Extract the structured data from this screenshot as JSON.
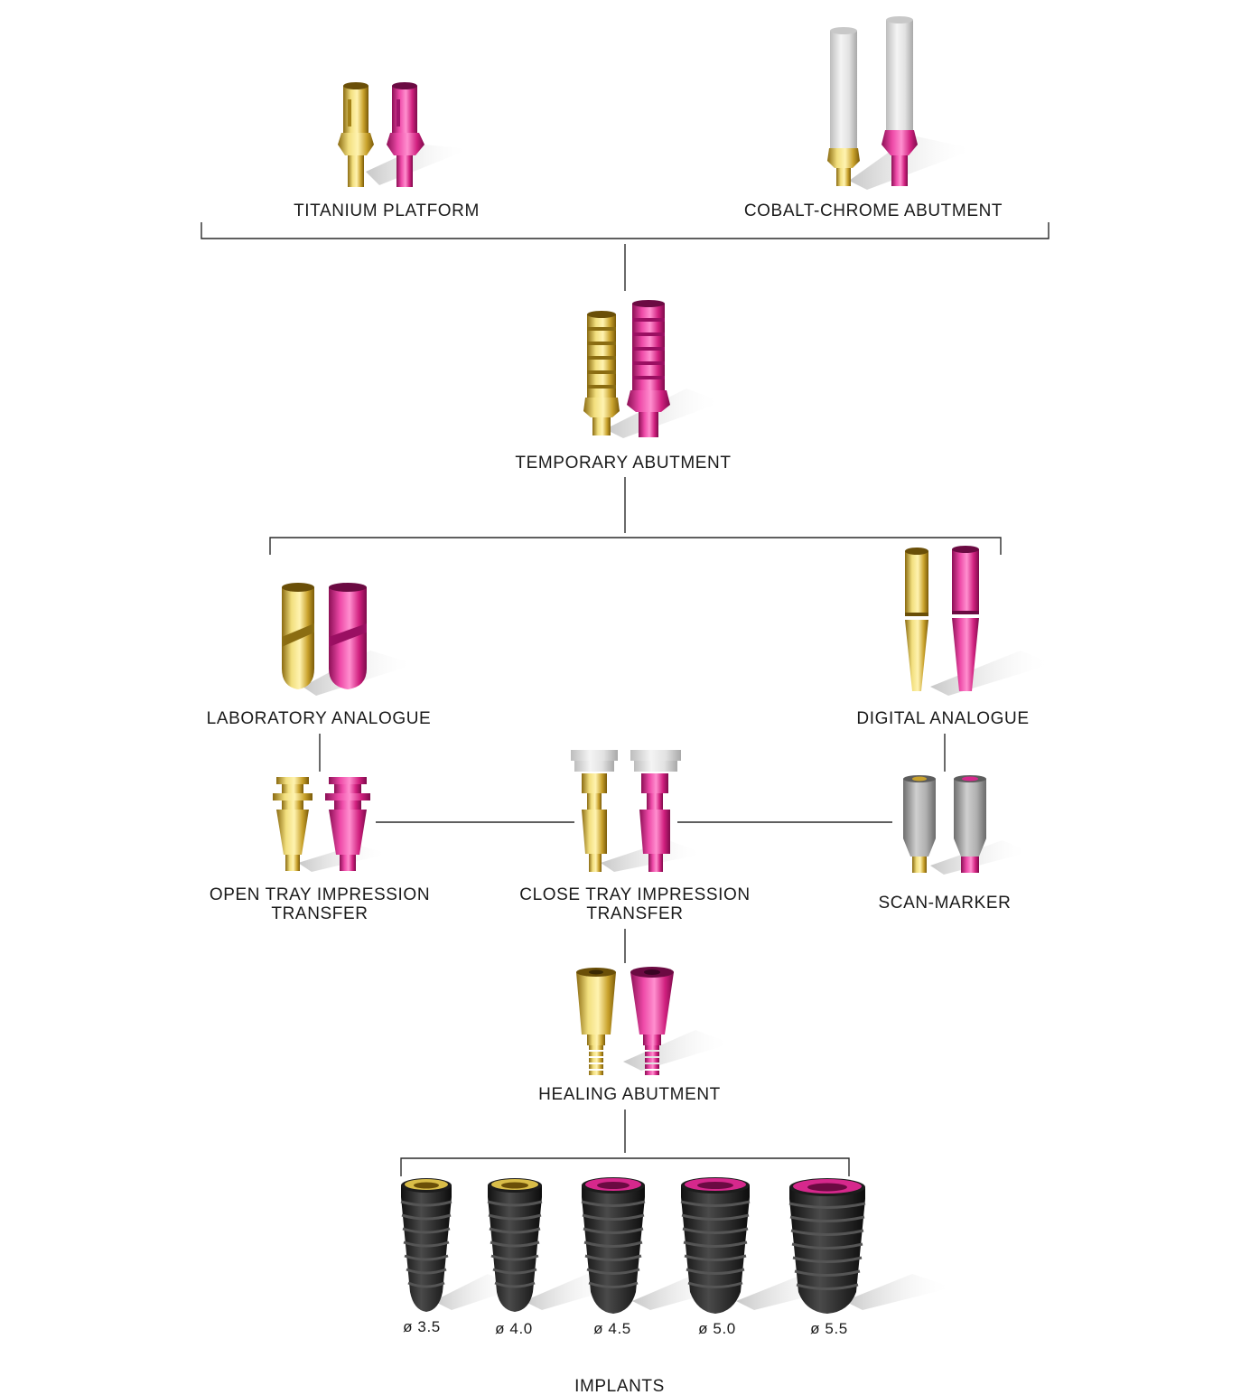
{
  "components": {
    "titanium_platform": "TITANIUM PLATFORM",
    "cobalt_chrome_abutment": "COBALT-CHROME ABUTMENT",
    "temporary_abutment": "TEMPORARY ABUTMENT",
    "laboratory_analogue": "LABORATORY ANALOGUE",
    "digital_analogue": "DIGITAL ANALOGUE",
    "open_tray_line1": "OPEN TRAY IMPRESSION",
    "open_tray_line2": "TRANSFER",
    "close_tray_line1": "CLOSE TRAY IMPRESSION",
    "close_tray_line2": "TRANSFER",
    "scan_marker": "SCAN-MARKER",
    "healing_abutment": "HEALING ABUTMENT",
    "implants": "IMPLANTS"
  },
  "implant_diameters": [
    "ø 3.5",
    "ø 4.0",
    "ø 4.5",
    "ø 5.0",
    "ø 5.5"
  ],
  "colors": {
    "gold": "#d4b43a",
    "magenta": "#d6288c",
    "white_cylinder": "#e6e6e6",
    "grey_scan": "#a9a9a9",
    "implant_body": "#2b2b2b",
    "line": "#2a2a2a"
  }
}
